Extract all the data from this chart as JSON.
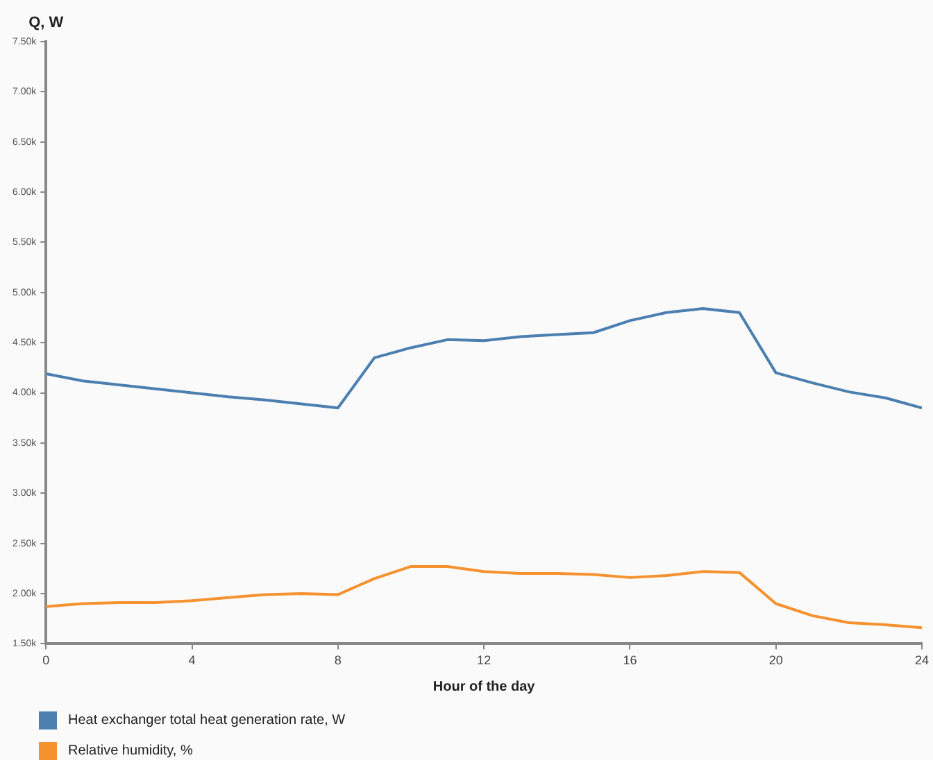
{
  "chart_data": {
    "type": "line",
    "xlabel": "Hour of the day",
    "ylabel": "Q, W",
    "x": [
      0,
      1,
      2,
      3,
      4,
      5,
      6,
      7,
      8,
      9,
      10,
      11,
      12,
      13,
      14,
      15,
      16,
      17,
      18,
      19,
      20,
      21,
      22,
      23,
      24
    ],
    "series": [
      {
        "name": "Heat exchanger total heat generation rate, W",
        "color": "#4a7fb0",
        "values": [
          4190,
          4120,
          4080,
          4040,
          4000,
          3960,
          3930,
          3890,
          3850,
          4350,
          4450,
          4530,
          4520,
          4560,
          4580,
          4600,
          4720,
          4800,
          4840,
          4800,
          4200,
          4100,
          4010,
          3950,
          3850
        ]
      },
      {
        "name": "Relative humidity, %",
        "color": "#f5922f",
        "values": [
          1870,
          1900,
          1910,
          1910,
          1930,
          1960,
          1990,
          2000,
          1990,
          2150,
          2270,
          2270,
          2220,
          2200,
          2200,
          2190,
          2160,
          2180,
          2220,
          2210,
          1900,
          1780,
          1710,
          1690,
          1660
        ]
      }
    ],
    "xlim": [
      0,
      24
    ],
    "xticks": [
      0,
      4,
      8,
      12,
      16,
      20,
      24
    ],
    "ylim": [
      1500,
      7500
    ],
    "yticks": [
      {
        "value": 1500,
        "label": "1.50k"
      },
      {
        "value": 2000,
        "label": "2.00k"
      },
      {
        "value": 2500,
        "label": "2.50k"
      },
      {
        "value": 3000,
        "label": "3.00k"
      },
      {
        "value": 3500,
        "label": "3.50k"
      },
      {
        "value": 4000,
        "label": "4.00k"
      },
      {
        "value": 4500,
        "label": "4.50k"
      },
      {
        "value": 5000,
        "label": "5.00k"
      },
      {
        "value": 5500,
        "label": "5.50k"
      },
      {
        "value": 6000,
        "label": "6.00k"
      },
      {
        "value": 6500,
        "label": "6.50k"
      },
      {
        "value": 7000,
        "label": "7.00k"
      },
      {
        "value": 7500,
        "label": "7.50k"
      }
    ],
    "grid": false,
    "legend": "bottom left",
    "marker": "none",
    "line_style": "solid"
  }
}
